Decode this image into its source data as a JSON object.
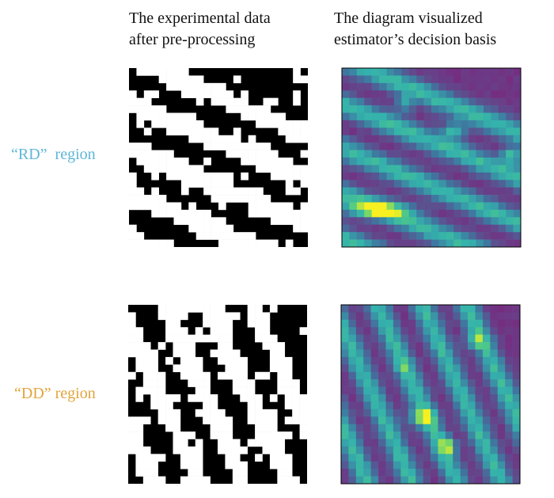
{
  "columns": [
    {
      "title_lines": [
        "The experimental data",
        "after pre-processing"
      ]
    },
    {
      "title_lines": [
        "The diagram visualized",
        "estimator’s decision basis"
      ]
    }
  ],
  "rows": [
    {
      "label": "“RD”  region"
    },
    {
      "label": "“DD” region"
    }
  ]
}
